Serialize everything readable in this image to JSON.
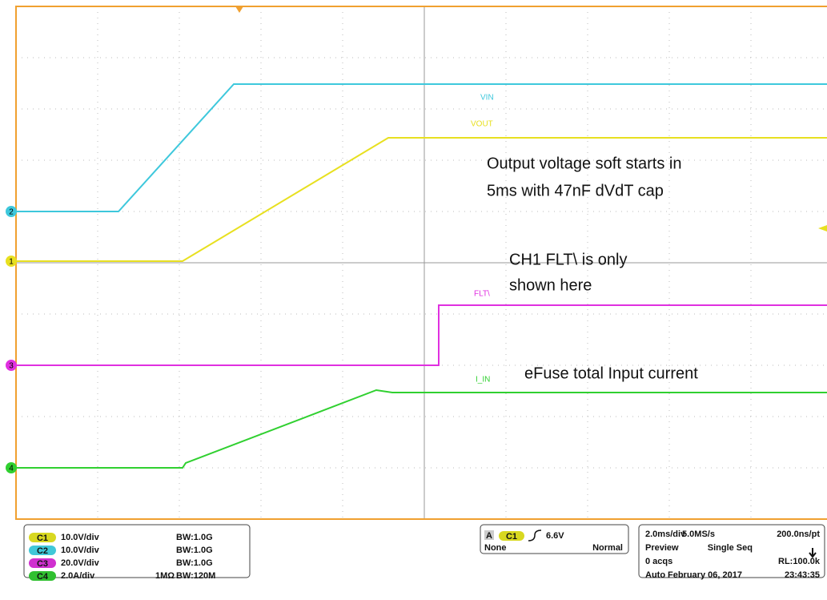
{
  "screen": {
    "traces": [
      {
        "name": "VIN",
        "marker": "2",
        "color": "#3ec8dc"
      },
      {
        "name": "VOUT",
        "marker": "1",
        "color": "#e8e020"
      },
      {
        "name": "FLT\\",
        "marker": "3",
        "color": "#e030e0"
      },
      {
        "name": "I_IN",
        "marker": "4",
        "color": "#30d030"
      }
    ],
    "annotations": [
      "Output voltage soft starts in",
      "5ms with 47nF dVdT cap",
      "CH1 FLT\\ is only",
      "shown here",
      "eFuse total Input current"
    ],
    "channels": [
      {
        "id": "C1",
        "scale": "10.0V/div",
        "bandwidth": "BW:1.0G",
        "color": "#d8d820"
      },
      {
        "id": "C2",
        "scale": "10.0V/div",
        "bandwidth": "BW:1.0G",
        "color": "#40c8d8"
      },
      {
        "id": "C3",
        "scale": "20.0V/div",
        "bandwidth": "BW:1.0G",
        "color": "#d030d0"
      },
      {
        "id": "C4",
        "scale": "2.0A/div",
        "impedance": "1MΩ",
        "bandwidth": "BW:120M",
        "color": "#30c030"
      }
    ],
    "trigger": {
      "source": "A",
      "channel": "C1",
      "level": "6.6V",
      "coupling": "None",
      "mode": "Normal"
    },
    "acquisition": {
      "rows": [
        [
          "2.0ms/div",
          "5.0MS/s",
          "200.0ns/pt"
        ],
        [
          "Preview",
          "Single Seq"
        ],
        [
          "0 acqs",
          "RL:100.0k"
        ],
        [
          "Auto",
          "February 06, 2017",
          "23:43:35"
        ]
      ]
    }
  }
}
